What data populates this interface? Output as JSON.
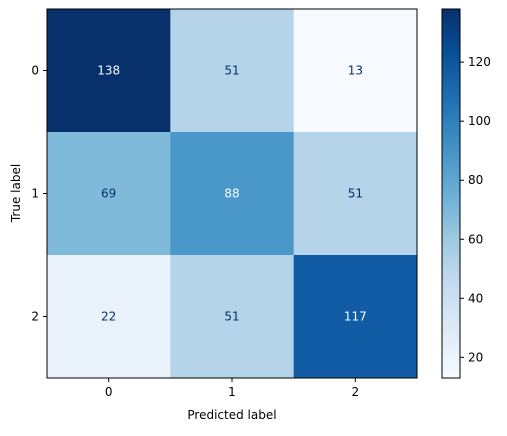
{
  "chart_data": {
    "type": "heatmap",
    "title": "",
    "xlabel": "Predicted label",
    "ylabel": "True label",
    "x_tick_labels": [
      "0",
      "1",
      "2"
    ],
    "y_tick_labels": [
      "0",
      "1",
      "2"
    ],
    "matrix": [
      [
        138,
        51,
        13
      ],
      [
        69,
        88,
        51
      ],
      [
        22,
        51,
        117
      ]
    ],
    "colormap": "Blues",
    "colorbar": {
      "min": 13,
      "max": 138,
      "ticks": [
        20,
        40,
        60,
        80,
        100,
        120
      ],
      "tick_labels": [
        "20",
        "40",
        "60",
        "80",
        "100",
        "120"
      ]
    },
    "grid": false
  },
  "colors": {
    "low": "#f7fbff",
    "high": "#08306b",
    "text_dark": "#08306b",
    "text_light": "#f7fbff"
  }
}
